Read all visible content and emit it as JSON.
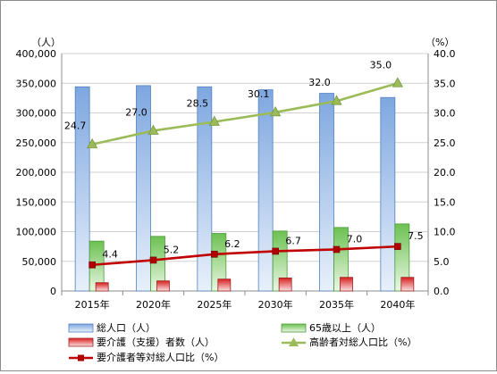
{
  "chart_data": {
    "type": "bar",
    "categories": [
      "2015年",
      "2020年",
      "2025年",
      "2030年",
      "2035年",
      "2040年"
    ],
    "y_left": {
      "unit": "（人）",
      "range": [
        0,
        400000
      ],
      "ticks": [
        "0",
        "50,000",
        "100,000",
        "150,000",
        "200,000",
        "250,000",
        "300,000",
        "350,000",
        "400,000"
      ]
    },
    "y_right": {
      "unit": "（%）",
      "range": [
        0,
        40
      ],
      "ticks": [
        "0.0",
        "5.0",
        "10.0",
        "15.0",
        "20.0",
        "25.0",
        "30.0",
        "35.0",
        "40.0"
      ]
    },
    "grid": true,
    "legend_position": "bottom",
    "series": [
      {
        "name": "総人口（人）",
        "kind": "bar",
        "axis": "left",
        "color": "#9fc0ea",
        "values": [
          344000,
          346000,
          344000,
          339000,
          333000,
          326000
        ]
      },
      {
        "name": "65歳以上（人）",
        "kind": "bar",
        "axis": "left",
        "color": "#8ed37a",
        "values": [
          84000,
          92000,
          97000,
          101000,
          107000,
          113000
        ]
      },
      {
        "name": "要介護（支援）者数（人）",
        "kind": "bar",
        "axis": "left",
        "color": "#e03030",
        "values": [
          14000,
          17000,
          20000,
          22000,
          23000,
          23000
        ]
      },
      {
        "name": "高齢者対総人口比（%）",
        "kind": "line",
        "axis": "right",
        "color": "#9bbb59",
        "marker": "triangle",
        "values": [
          24.7,
          27.0,
          28.5,
          30.1,
          32.0,
          35.0
        ],
        "labels": [
          "24.7",
          "27.0",
          "28.5",
          "30.1",
          "32.0",
          "35.0"
        ]
      },
      {
        "name": "要介護者等対総人口比（%）",
        "kind": "line",
        "axis": "right",
        "color": "#c00000",
        "marker": "square",
        "values": [
          4.4,
          5.2,
          6.2,
          6.7,
          7.0,
          7.5
        ],
        "labels": [
          "4.4",
          "5.2",
          "6.2",
          "6.7",
          "7.0",
          "7.5"
        ]
      }
    ]
  }
}
